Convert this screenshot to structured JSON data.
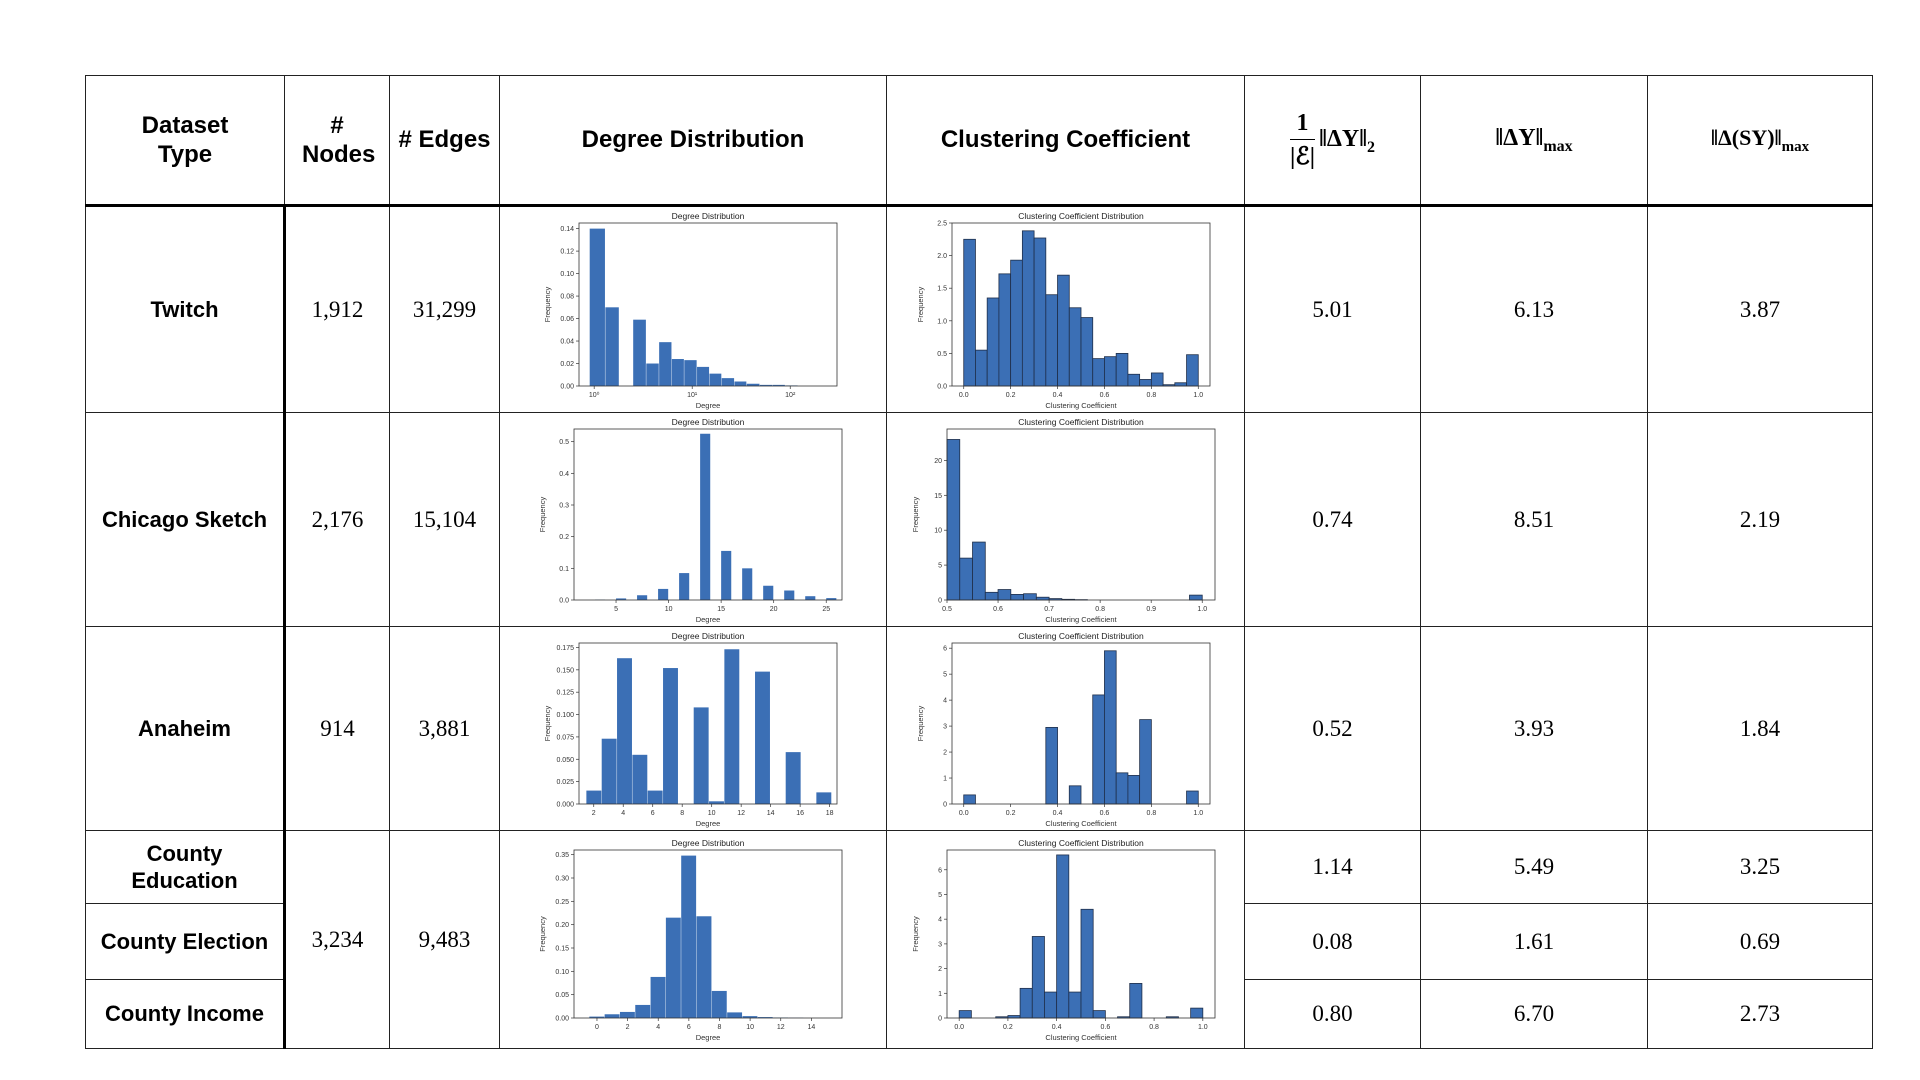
{
  "headers": {
    "dataset_type": "Dataset Type",
    "nodes": "# Nodes",
    "edges": "# Edges",
    "degree_distribution": "Degree Distribution",
    "clustering_coefficient": "Clustering Coefficient",
    "metric1_num": "1",
    "metric1_den": "|ℰ|",
    "metric1_main": "‖ΔY‖",
    "metric1_sub": "2",
    "metric2_main": "‖ΔY‖",
    "metric2_sub": "max",
    "metric3_main": "‖Δ(SY)‖",
    "metric3_sub": "max"
  },
  "rows": [
    {
      "type": "Twitch",
      "nodes": "1,912",
      "edges": "31,299",
      "m1": "5.01",
      "m2": "6.13",
      "m3": "3.87"
    },
    {
      "type": "Chicago Sketch",
      "nodes": "2,176",
      "edges": "15,104",
      "m1": "0.74",
      "m2": "8.51",
      "m3": "2.19"
    },
    {
      "type": "Anaheim",
      "nodes": "914",
      "edges": "3,881",
      "m1": "0.52",
      "m2": "3.93",
      "m3": "1.84"
    },
    {
      "type": "County Education",
      "m1": "1.14",
      "m2": "5.49",
      "m3": "3.25"
    },
    {
      "type": "County Election",
      "m1": "0.08",
      "m2": "1.61",
      "m3": "0.69"
    },
    {
      "type": "County Income",
      "m1": "0.80",
      "m2": "6.70",
      "m3": "2.73"
    }
  ],
  "county_shared": {
    "nodes": "3,234",
    "edges": "9,483"
  },
  "colors": {
    "bar": "#3b6fb5",
    "border": "#1f2f4a"
  },
  "chart_data": [
    {
      "id": "twitch_degree",
      "type": "bar",
      "title": "Degree Distribution",
      "xlabel": "Degree",
      "ylabel": "Frequency",
      "xscale": "log",
      "xlim": [
        0.7,
        300
      ],
      "ylim": [
        0,
        0.145
      ],
      "yticks": [
        0,
        0.02,
        0.04,
        0.06,
        0.08,
        0.1,
        0.12,
        0.14
      ],
      "ytick_labels": [
        "0.00",
        "0.02",
        "0.04",
        "0.06",
        "0.08",
        "0.10",
        "0.12",
        "0.14"
      ],
      "xticks": [
        1,
        10,
        100
      ],
      "xtick_labels": [
        "10⁰",
        "10¹",
        "10²"
      ],
      "bin_edges": [
        0.9,
        1.3,
        1.8,
        2.5,
        3.4,
        4.6,
        6.2,
        8.3,
        11.2,
        15,
        20,
        27,
        36,
        49,
        66,
        89,
        120
      ],
      "values": [
        0.14,
        0.07,
        0,
        0.059,
        0.02,
        0.039,
        0.024,
        0.023,
        0.017,
        0.011,
        0.007,
        0.004,
        0.002,
        0.001,
        0.001,
        0.0005
      ],
      "outlined": false
    },
    {
      "id": "twitch_cc",
      "type": "bar",
      "title": "Clustering Coefficient Distribution",
      "xlabel": "Clustering Coefficient",
      "ylabel": "Frequency",
      "xlim": [
        -0.05,
        1.05
      ],
      "ylim": [
        0,
        2.5
      ],
      "yticks": [
        0,
        0.5,
        1,
        1.5,
        2,
        2.5
      ],
      "ytick_labels": [
        "0.0",
        "0.5",
        "1.0",
        "1.5",
        "2.0",
        "2.5"
      ],
      "xticks": [
        0,
        0.2,
        0.4,
        0.6,
        0.8,
        1.0
      ],
      "xtick_labels": [
        "0.0",
        "0.2",
        "0.4",
        "0.6",
        "0.8",
        "1.0"
      ],
      "bin_start": 0,
      "bin_width": 0.05,
      "values": [
        2.25,
        0.55,
        1.35,
        1.72,
        1.93,
        2.38,
        2.27,
        1.4,
        1.7,
        1.2,
        1.05,
        0.42,
        0.45,
        0.5,
        0.18,
        0.1,
        0.2,
        0.02,
        0.05,
        0.48
      ],
      "outlined": true
    },
    {
      "id": "chicago_degree",
      "type": "bar",
      "title": "Degree Distribution",
      "xlabel": "Degree",
      "ylabel": "Frequency",
      "xlim": [
        1,
        26.5
      ],
      "ylim": [
        0,
        0.54
      ],
      "yticks": [
        0,
        0.1,
        0.2,
        0.3,
        0.4,
        0.5
      ],
      "ytick_labels": [
        "0.0",
        "0.1",
        "0.2",
        "0.3",
        "0.4",
        "0.5"
      ],
      "xticks": [
        5,
        10,
        15,
        20,
        25
      ],
      "xtick_labels": [
        "5",
        "10",
        "15",
        "20",
        "25"
      ],
      "bin_start": 3,
      "bin_width": 1,
      "values": [
        0.001,
        0,
        0.005,
        0,
        0.015,
        0,
        0.035,
        0,
        0.085,
        0,
        0.525,
        0,
        0.155,
        0,
        0.1,
        0,
        0.045,
        0,
        0.03,
        0,
        0.012,
        0,
        0.006
      ],
      "outlined": false
    },
    {
      "id": "chicago_cc",
      "type": "bar",
      "title": "Clustering Coefficient Distribution",
      "xlabel": "Clustering Coefficient",
      "ylabel": "Frequency",
      "xlim": [
        0.5,
        1.025
      ],
      "ylim": [
        0,
        24.5
      ],
      "yticks": [
        0,
        5,
        10,
        15,
        20
      ],
      "ytick_labels": [
        "0",
        "5",
        "10",
        "15",
        "20"
      ],
      "xticks": [
        0.5,
        0.6,
        0.7,
        0.8,
        0.9,
        1.0
      ],
      "xtick_labels": [
        "0.5",
        "0.6",
        "0.7",
        "0.8",
        "0.9",
        "1.0"
      ],
      "bin_start": 0.5,
      "bin_width": 0.025,
      "values": [
        23,
        6,
        8.3,
        1.1,
        1.5,
        0.8,
        0.9,
        0.4,
        0.2,
        0.1,
        0.05,
        0,
        0,
        0,
        0,
        0,
        0,
        0,
        0,
        0.7
      ],
      "outlined": true
    },
    {
      "id": "anaheim_degree",
      "type": "bar",
      "title": "Degree Distribution",
      "xlabel": "Degree",
      "ylabel": "Frequency",
      "xlim": [
        1,
        18.5
      ],
      "ylim": [
        0,
        0.18
      ],
      "yticks": [
        0,
        0.025,
        0.05,
        0.075,
        0.1,
        0.125,
        0.15,
        0.175
      ],
      "ytick_labels": [
        "0.000",
        "0.025",
        "0.050",
        "0.075",
        "0.100",
        "0.125",
        "0.150",
        "0.175"
      ],
      "xticks": [
        2,
        4,
        6,
        8,
        10,
        12,
        14,
        16,
        18
      ],
      "xtick_labels": [
        "2",
        "4",
        "6",
        "8",
        "10",
        "12",
        "14",
        "16",
        "18"
      ],
      "bin_start": 1.5,
      "bin_width": 1.04,
      "values": [
        0.015,
        0.073,
        0.163,
        0.055,
        0.015,
        0.152,
        0,
        0.108,
        0.003,
        0.173,
        0,
        0.148,
        0,
        0.058,
        0,
        0.013
      ],
      "outlined": false
    },
    {
      "id": "anaheim_cc",
      "type": "bar",
      "title": "Clustering Coefficient Distribution",
      "xlabel": "Clustering Coefficient",
      "ylabel": "Frequency",
      "xlim": [
        -0.05,
        1.05
      ],
      "ylim": [
        0,
        6.2
      ],
      "yticks": [
        0,
        1,
        2,
        3,
        4,
        5,
        6
      ],
      "ytick_labels": [
        "0",
        "1",
        "2",
        "3",
        "4",
        "5",
        "6"
      ],
      "xticks": [
        0,
        0.2,
        0.4,
        0.6,
        0.8,
        1.0
      ],
      "xtick_labels": [
        "0.0",
        "0.2",
        "0.4",
        "0.6",
        "0.8",
        "1.0"
      ],
      "bin_start": 0,
      "bin_width": 0.05,
      "values": [
        0.35,
        0,
        0,
        0,
        0,
        0,
        0,
        2.95,
        0,
        0.7,
        0,
        4.2,
        5.9,
        1.2,
        1.1,
        3.25,
        0,
        0,
        0,
        0.5
      ],
      "outlined": true
    },
    {
      "id": "county_degree",
      "type": "bar",
      "title": "Degree Distribution",
      "xlabel": "Degree",
      "ylabel": "Frequency",
      "xlim": [
        -1.5,
        16
      ],
      "ylim": [
        0,
        0.36
      ],
      "yticks": [
        0,
        0.05,
        0.1,
        0.15,
        0.2,
        0.25,
        0.3,
        0.35
      ],
      "ytick_labels": [
        "0.00",
        "0.05",
        "0.10",
        "0.15",
        "0.20",
        "0.25",
        "0.30",
        "0.35"
      ],
      "xticks": [
        0,
        2,
        4,
        6,
        8,
        10,
        12,
        14
      ],
      "xtick_labels": [
        "0",
        "2",
        "4",
        "6",
        "8",
        "10",
        "12",
        "14"
      ],
      "bin_start": -0.5,
      "bin_width": 1,
      "values": [
        0.003,
        0.008,
        0.013,
        0.028,
        0.088,
        0.215,
        0.348,
        0.218,
        0.058,
        0.012,
        0.004,
        0.002,
        0.001,
        0.0005
      ],
      "outlined": false
    },
    {
      "id": "county_cc",
      "type": "bar",
      "title": "Clustering Coefficient Distribution",
      "xlabel": "Clustering Coefficient",
      "ylabel": "Frequency",
      "xlim": [
        -0.05,
        1.05
      ],
      "ylim": [
        0,
        6.8
      ],
      "yticks": [
        0,
        1,
        2,
        3,
        4,
        5,
        6
      ],
      "ytick_labels": [
        "0",
        "1",
        "2",
        "3",
        "4",
        "5",
        "6"
      ],
      "xticks": [
        0,
        0.2,
        0.4,
        0.6,
        0.8,
        1.0
      ],
      "xtick_labels": [
        "0.0",
        "0.2",
        "0.4",
        "0.6",
        "0.8",
        "1.0"
      ],
      "bin_start": 0,
      "bin_width": 0.05,
      "values": [
        0.3,
        0,
        0,
        0.05,
        0.1,
        1.2,
        3.3,
        1.05,
        6.6,
        1.05,
        4.4,
        0.3,
        0,
        0.05,
        1.4,
        0,
        0,
        0.05,
        0,
        0.4
      ],
      "outlined": true
    }
  ]
}
